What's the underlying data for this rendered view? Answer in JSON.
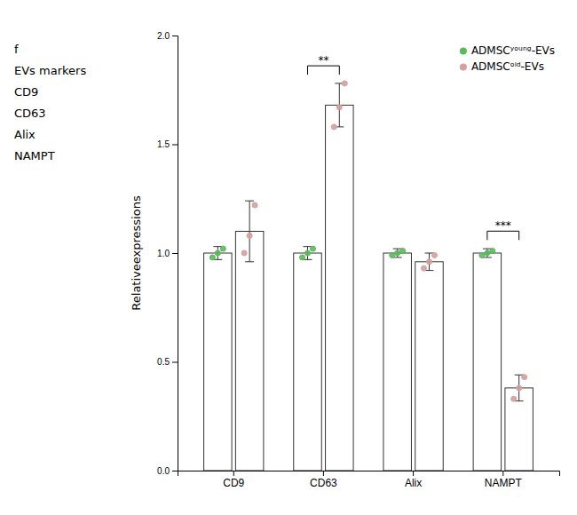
{
  "chart_data": {
    "type": "bar",
    "ylabel": "Relativeexpressions",
    "categories": [
      "CD9",
      "CD63",
      "Alix",
      "NAMPT"
    ],
    "series": [
      {
        "name": "ADMSCʸᵒᵘⁿᵍ-EVs",
        "color": "#5cb85c",
        "values": [
          1.0,
          1.0,
          1.0,
          1.0
        ],
        "errors": [
          0.03,
          0.03,
          0.02,
          0.02
        ],
        "dots": [
          [
            0.98,
            1.0,
            1.02
          ],
          [
            0.98,
            1.0,
            1.02
          ],
          [
            0.99,
            1.0,
            1.01
          ],
          [
            0.99,
            1.0,
            1.01
          ]
        ]
      },
      {
        "name": "ADMSCᵒˡᵈ-EVs",
        "color": "#d4a0a0",
        "values": [
          1.1,
          1.68,
          0.96,
          0.38
        ],
        "errors": [
          0.14,
          0.1,
          0.04,
          0.06
        ],
        "dots": [
          [
            1.0,
            1.08,
            1.22
          ],
          [
            1.58,
            1.67,
            1.78
          ],
          [
            0.93,
            0.96,
            0.99
          ],
          [
            0.33,
            0.38,
            0.43
          ]
        ]
      }
    ],
    "ylim": [
      0,
      2.0
    ],
    "yticks": [
      {
        "value": 0,
        "label": "0.0"
      },
      0.5,
      {
        "value": 1.0,
        "label": "1.0"
      },
      1.5,
      {
        "value": 2.0,
        "label": "2.0"
      }
    ],
    "annotations": [
      {
        "text": "**",
        "category": "CD63",
        "y": 1.82
      },
      {
        "text": "***",
        "category": "NAMPT",
        "y": 1.06
      },
      {
        "text": "f"
      },
      {
        "text": "EVs markers"
      },
      {
        "text": "CD9"
      },
      {
        "text": "CD63"
      },
      {
        "text": "Alix"
      },
      {
        "text": "NAMPT"
      }
    ],
    "legend": "upper right",
    "grid": false
  }
}
